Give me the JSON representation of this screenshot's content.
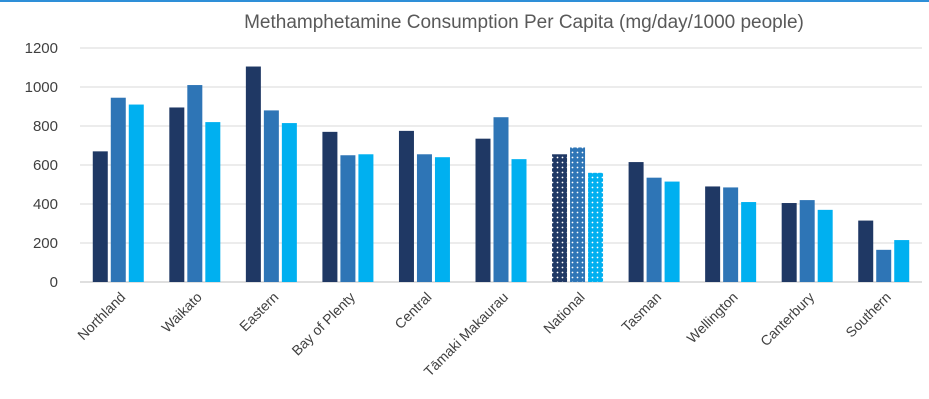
{
  "chart_data": {
    "type": "bar",
    "title": "Methamphetamine Consumption Per Capita (mg/day/1000 people)",
    "xlabel": "",
    "ylabel": "",
    "ylim": [
      0,
      1200
    ],
    "yticks": [
      0,
      200,
      400,
      600,
      800,
      1000,
      1200
    ],
    "grid": true,
    "legend": "none",
    "categories": [
      "Northland",
      "Waikato",
      "Eastern",
      "Bay of Plenty",
      "Central",
      "Tāmaki Makaurau",
      "National",
      "Tasman",
      "Wellington",
      "Canterbury",
      "Southern"
    ],
    "highlighted_category": "National",
    "series": [
      {
        "color": "#1f3864",
        "values": [
          670,
          895,
          1105,
          770,
          775,
          735,
          655,
          615,
          490,
          405,
          315
        ]
      },
      {
        "color": "#2e75b6",
        "values": [
          945,
          1010,
          880,
          650,
          655,
          845,
          690,
          535,
          485,
          420,
          165
        ]
      },
      {
        "color": "#00b0f0",
        "values": [
          910,
          820,
          815,
          655,
          640,
          630,
          560,
          515,
          410,
          370,
          215
        ]
      }
    ]
  }
}
